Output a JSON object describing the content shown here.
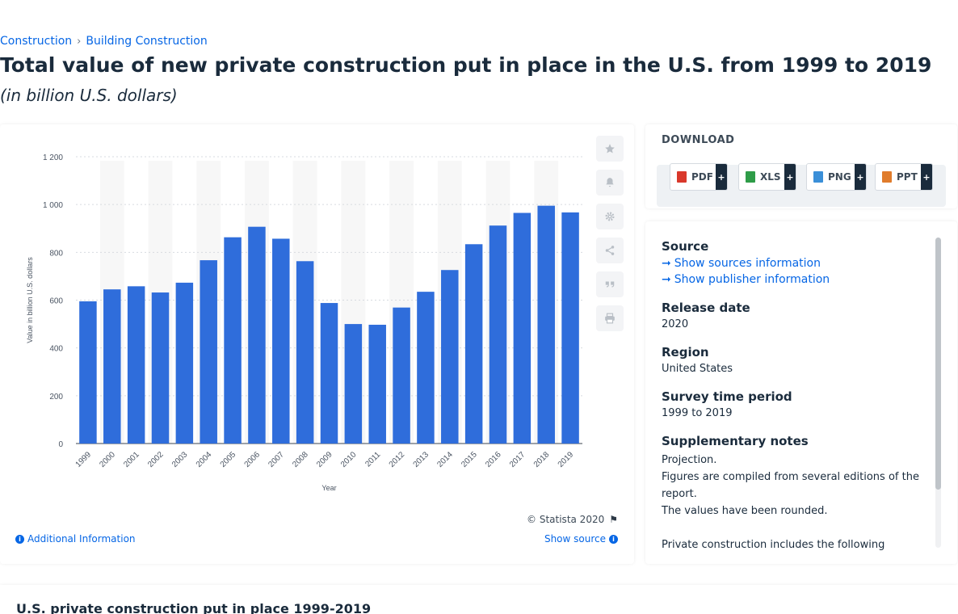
{
  "breadcrumb": {
    "item1": "Construction",
    "separator": "›",
    "item2": "Building Construction"
  },
  "title": "Total value of new private construction put in place in the U.S. from 1999 to 2019",
  "subtitle": "(in billion U.S. dollars)",
  "chart_data": {
    "type": "bar",
    "categories": [
      "1999",
      "2000",
      "2001",
      "2002",
      "2003",
      "2004",
      "2005",
      "2006",
      "2007",
      "2008",
      "2009",
      "2010",
      "2011",
      "2012",
      "2013",
      "2014",
      "2015",
      "2016",
      "2017",
      "2018",
      "2019"
    ],
    "values": [
      595,
      645,
      658,
      632,
      673,
      767,
      863,
      907,
      857,
      763,
      588,
      500,
      497,
      569,
      635,
      726,
      834,
      912,
      965,
      995,
      967
    ],
    "xlabel": "Year",
    "ylabel": "Value in billion U.S. dollars",
    "ylim": [
      0,
      1200
    ],
    "yticks": [
      "0",
      "200",
      "400",
      "600",
      "800",
      "1 000",
      "1 200"
    ],
    "ytick_values": [
      0,
      200,
      400,
      600,
      800,
      1000,
      1200
    ],
    "bar_color": "#2f6ddb",
    "stripe_color": "#f7f7f7",
    "grid": true
  },
  "toolbar": {
    "favorite_icon": "star-icon",
    "alert_icon": "bell-icon",
    "settings_icon": "gear-icon",
    "share_icon": "share-icon",
    "cite_icon": "quote-icon",
    "print_icon": "print-icon"
  },
  "copyright": "© Statista 2020",
  "additional_info": "Additional Information",
  "show_source": "Show source",
  "download": {
    "title": "DOWNLOAD",
    "buttons": [
      {
        "label": "PDF",
        "color": "#d9382b"
      },
      {
        "label": "XLS",
        "color": "#2e9c48"
      },
      {
        "label": "PNG",
        "color": "#3a8fd8"
      },
      {
        "label": "PPT",
        "color": "#e07c2c"
      }
    ],
    "plus": "+"
  },
  "source_panel": {
    "source_heading": "Source",
    "show_sources": "Show sources information",
    "show_publisher": "Show publisher information",
    "release_heading": "Release date",
    "release_value": "2020",
    "region_heading": "Region",
    "region_value": "United States",
    "survey_heading": "Survey time period",
    "survey_value": "1999 to 2019",
    "supp_heading": "Supplementary notes",
    "note1": "Projection.",
    "note2": "Figures are compiled from several editions of the report.",
    "note3": "The values have been rounded.",
    "note4": "Private construction includes the following"
  },
  "bottom_title": "U.S. private construction put in place 1999-2019"
}
